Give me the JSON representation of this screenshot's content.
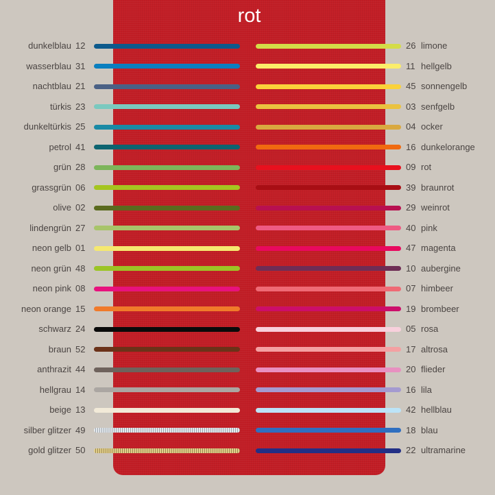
{
  "title": "rot",
  "colors": {
    "background": "#cdc7bf",
    "panel": "#c21d25",
    "title_text": "#ffffff",
    "label_text": "#4a4442"
  },
  "left": [
    {
      "name": "dunkelblau",
      "code": "12",
      "color": "#0d5a8c"
    },
    {
      "name": "wasserblau",
      "code": "31",
      "color": "#0a7fbf"
    },
    {
      "name": "nachtblau",
      "code": "21",
      "color": "#4a6185"
    },
    {
      "name": "türkis",
      "code": "23",
      "color": "#7ac9bf"
    },
    {
      "name": "dunkeltürkis",
      "code": "25",
      "color": "#1a8aa5"
    },
    {
      "name": "petrol",
      "code": "41",
      "color": "#0d6470"
    },
    {
      "name": "grün",
      "code": "28",
      "color": "#7db55a"
    },
    {
      "name": "grassgrün",
      "code": "06",
      "color": "#a5c520"
    },
    {
      "name": "olive",
      "code": "02",
      "color": "#5a6a1e"
    },
    {
      "name": "lindengrün",
      "code": "27",
      "color": "#a8c46a"
    },
    {
      "name": "neon gelb",
      "code": "01",
      "color": "#f5e870"
    },
    {
      "name": "neon grün",
      "code": "48",
      "color": "#9cc425"
    },
    {
      "name": "neon pink",
      "code": "08",
      "color": "#e8127d"
    },
    {
      "name": "neon orange",
      "code": "15",
      "color": "#f07a2a"
    },
    {
      "name": "schwarz",
      "code": "24",
      "color": "#0a0a0a"
    },
    {
      "name": "braun",
      "code": "52",
      "color": "#6b3219"
    },
    {
      "name": "anthrazit",
      "code": "44",
      "color": "#6e625c"
    },
    {
      "name": "hellgrau",
      "code": "14",
      "color": "#aba6a2"
    },
    {
      "name": "beige",
      "code": "13",
      "color": "#f2ead8"
    },
    {
      "name": "silber glitzer",
      "code": "49",
      "color": "#c8d0d6"
    },
    {
      "name": "gold glitzer",
      "code": "50",
      "color": "#cdb570"
    }
  ],
  "right": [
    {
      "name": "limone",
      "code": "26",
      "color": "#d4dc48"
    },
    {
      "name": "hellgelb",
      "code": "11",
      "color": "#fbed6a"
    },
    {
      "name": "sonnengelb",
      "code": "45",
      "color": "#fad23a"
    },
    {
      "name": "senfgelb",
      "code": "03",
      "color": "#eac240"
    },
    {
      "name": "ocker",
      "code": "04",
      "color": "#d9a840"
    },
    {
      "name": "dunkelorange",
      "code": "16",
      "color": "#f06a10"
    },
    {
      "name": "rot",
      "code": "09",
      "color": "#e8101e"
    },
    {
      "name": "braunrot",
      "code": "39",
      "color": "#a80e14"
    },
    {
      "name": "weinrot",
      "code": "29",
      "color": "#b81050"
    },
    {
      "name": "pink",
      "code": "40",
      "color": "#ee5a82"
    },
    {
      "name": "magenta",
      "code": "47",
      "color": "#e8095e"
    },
    {
      "name": "aubergine",
      "code": "10",
      "color": "#6e2d55"
    },
    {
      "name": "himbeer",
      "code": "07",
      "color": "#ef6a75"
    },
    {
      "name": "brombeer",
      "code": "19",
      "color": "#cc0e6a"
    },
    {
      "name": "rosa",
      "code": "05",
      "color": "#f8d0dc"
    },
    {
      "name": "altrosa",
      "code": "17",
      "color": "#f4a0a2"
    },
    {
      "name": "flieder",
      "code": "20",
      "color": "#e890c0"
    },
    {
      "name": "lila",
      "code": "16",
      "color": "#a49ad0"
    },
    {
      "name": "hellblau",
      "code": "42",
      "color": "#bce4f8"
    },
    {
      "name": "blau",
      "code": "18",
      "color": "#2f6fc0"
    },
    {
      "name": "ultramarine",
      "code": "22",
      "color": "#232f85"
    }
  ]
}
